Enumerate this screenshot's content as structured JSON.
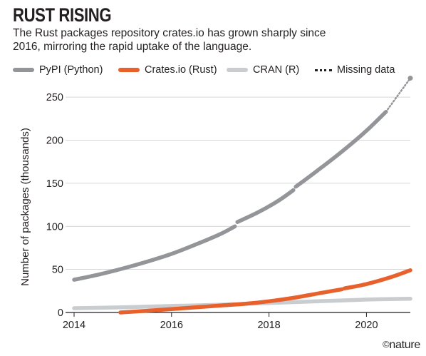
{
  "chart_data": {
    "type": "line",
    "title": "RUST RISING",
    "subtitle": "The Rust packages repository crates.io has grown sharply since 2016, mirroring the rapid uptake of the language.",
    "ylabel": "Number of packages (thousands)",
    "xlabel": "",
    "xlim": [
      2014,
      2020.9
    ],
    "ylim": [
      0,
      270
    ],
    "x_ticks": [
      2014,
      2016,
      2018,
      2020
    ],
    "y_ticks": [
      0,
      50,
      100,
      150,
      200,
      250
    ],
    "grid": "horizontal",
    "legend_position": "top",
    "legend": {
      "pypi": "PyPI (Python)",
      "crates": "Crates.io (Rust)",
      "cran": "CRAN (R)",
      "missing": "Missing data"
    },
    "series": [
      {
        "name": "PyPI (Python)",
        "color": "#939598",
        "segments": [
          {
            "x": [
              2014.0,
              2014.5,
              2015.0,
              2015.5,
              2016.0,
              2016.5,
              2017.0,
              2017.3
            ],
            "y": [
              38,
              44,
              51,
              59,
              68,
              79,
              91,
              100
            ]
          },
          {
            "x": [
              2017.35,
              2017.8,
              2018.2,
              2018.5
            ],
            "y": [
              105,
              117,
              130,
              142
            ]
          },
          {
            "x": [
              2018.55,
              2019.0,
              2019.5,
              2020.0,
              2020.4
            ],
            "y": [
              146,
              165,
              187,
              211,
              233
            ]
          }
        ],
        "missing": {
          "x": [
            2020.4,
            2020.9
          ],
          "y": [
            233,
            272
          ]
        }
      },
      {
        "name": "Crates.io (Rust)",
        "color": "#e8612c",
        "segments": [
          {
            "x": [
              2014.95,
              2015.5,
              2016.0,
              2016.5,
              2017.0,
              2017.5,
              2018.0,
              2018.5,
              2019.0,
              2019.5
            ],
            "y": [
              0,
              2,
              4,
              6,
              8,
              10,
              13,
              17,
              22,
              27
            ]
          },
          {
            "x": [
              2019.55,
              2020.0,
              2020.5,
              2020.9
            ],
            "y": [
              28,
              33,
              41,
              49
            ]
          }
        ]
      },
      {
        "name": "CRAN (R)",
        "color": "#c9cdd0",
        "segments": [
          {
            "x": [
              2014.0,
              2015.0,
              2016.0,
              2017.0,
              2018.0,
              2019.0,
              2020.0,
              2020.9
            ],
            "y": [
              5,
              6,
              7.5,
              9,
              11,
              13,
              15,
              16
            ]
          }
        ]
      }
    ]
  },
  "branding": {
    "logo_symbol": "©",
    "logo_text": "nature"
  }
}
